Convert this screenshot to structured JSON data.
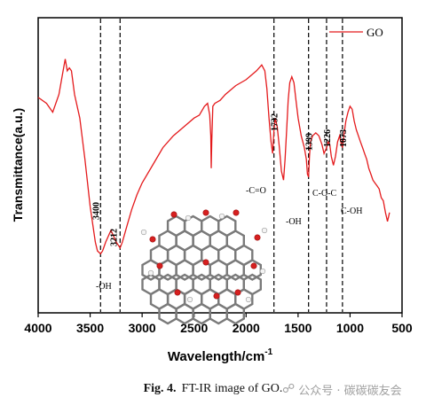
{
  "chart_data": {
    "type": "line",
    "title": "",
    "xlabel": "Wavelength/cm",
    "xlabel_superscript": "-1",
    "ylabel": "Transmittance(a.u.)",
    "xlim": [
      4000,
      500
    ],
    "x_axis_reversed": true,
    "xticks": [
      "4000",
      "3500",
      "3000",
      "2500",
      "2000",
      "1500",
      "1000",
      "500"
    ],
    "legend": {
      "position": "top-right",
      "entries": [
        "GO"
      ]
    },
    "series": [
      {
        "name": "GO",
        "color": "#e41a1c",
        "x": [
          4000,
          3920,
          3860,
          3800,
          3760,
          3740,
          3720,
          3700,
          3680,
          3650,
          3600,
          3550,
          3500,
          3450,
          3430,
          3400,
          3380,
          3350,
          3300,
          3250,
          3212,
          3190,
          3150,
          3100,
          3050,
          3000,
          2900,
          2800,
          2700,
          2600,
          2500,
          2450,
          2400,
          2370,
          2350,
          2340,
          2335,
          2330,
          2320,
          2300,
          2250,
          2200,
          2100,
          2000,
          1900,
          1850,
          1820,
          1800,
          1780,
          1760,
          1745,
          1732,
          1720,
          1700,
          1680,
          1660,
          1640,
          1625,
          1610,
          1595,
          1580,
          1560,
          1540,
          1520,
          1500,
          1470,
          1440,
          1420,
          1410,
          1399,
          1390,
          1380,
          1360,
          1330,
          1300,
          1270,
          1250,
          1226,
          1210,
          1195,
          1180,
          1160,
          1140,
          1120,
          1100,
          1090,
          1073,
          1060,
          1040,
          1020,
          1000,
          980,
          960,
          940,
          920,
          900,
          880,
          860,
          840,
          820,
          800,
          780,
          760,
          740,
          720,
          700,
          680,
          660,
          640,
          620
        ],
        "y": [
          73,
          71,
          68,
          74,
          82,
          86,
          82,
          83,
          82,
          74,
          66,
          52,
          36,
          24,
          21,
          20,
          21,
          24,
          28,
          24,
          22,
          24,
          29,
          35,
          40,
          44,
          50,
          56,
          60,
          63,
          66,
          67,
          70,
          71,
          67,
          60,
          49,
          58,
          70,
          71,
          72,
          74,
          77,
          79,
          82,
          84,
          82,
          76,
          66,
          58,
          54,
          62,
          66,
          63,
          56,
          48,
          45,
          52,
          62,
          72,
          78,
          80,
          78,
          72,
          66,
          60,
          56,
          52,
          47,
          46,
          53,
          58,
          60,
          61,
          60,
          57,
          54,
          56,
          58,
          57,
          53,
          50,
          53,
          58,
          60,
          58,
          56,
          60,
          65,
          68,
          70,
          69,
          65,
          62,
          60,
          58,
          56,
          54,
          52,
          49,
          47,
          45,
          44,
          43,
          42,
          39,
          38,
          34,
          31,
          34
        ]
      }
    ],
    "ylim": [
      0,
      100
    ],
    "yticks_shown": false,
    "reference_lines": [
      {
        "x": 3400,
        "label": "3400"
      },
      {
        "x": 3212,
        "label": "3212"
      },
      {
        "x": 1732,
        "label": "1732"
      },
      {
        "x": 1399,
        "label": "1399"
      },
      {
        "x": 1226,
        "label": "1226"
      },
      {
        "x": 1073,
        "label": "1073"
      }
    ],
    "annotations": [
      "-OH",
      "-C=O",
      "-OH",
      "C-O-C",
      "C-OH"
    ]
  },
  "caption": {
    "label": "Fig. 4.",
    "text": "FT-IR image of GO."
  },
  "watermark": {
    "icon": "wechat-icon",
    "text": "公众号 · 碳碳碳友会"
  },
  "inset": {
    "description_icon": "graphene-oxide-molecule-icon"
  }
}
